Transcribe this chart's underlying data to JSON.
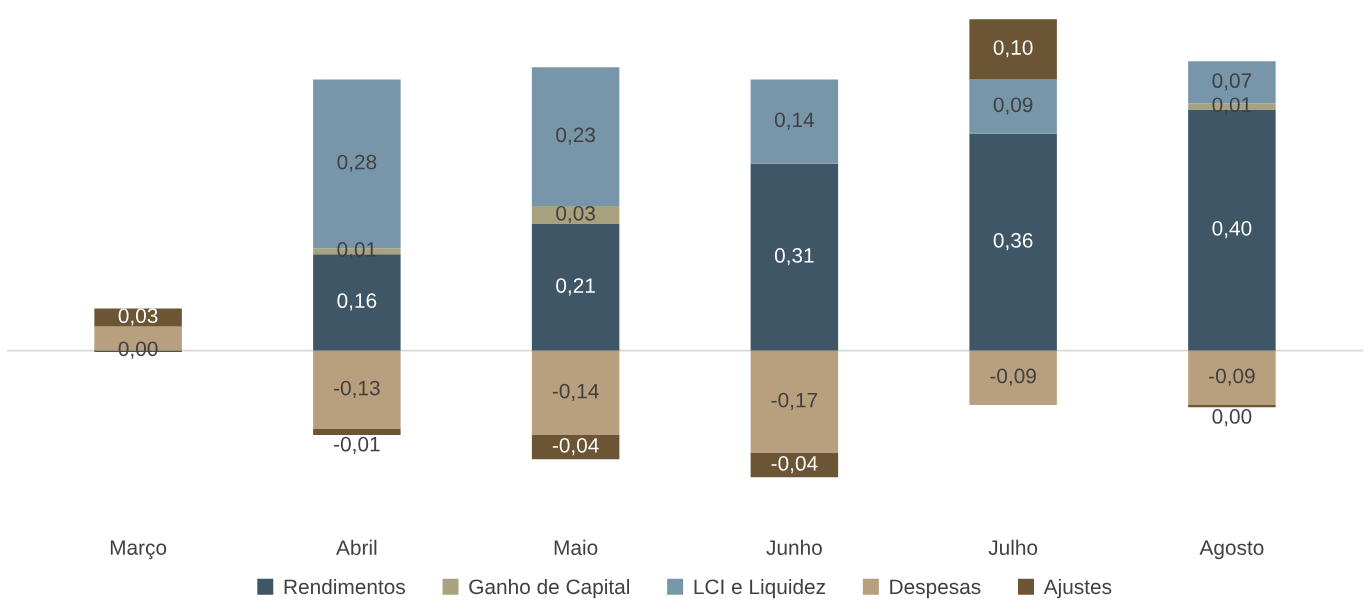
{
  "chart_data": {
    "type": "bar",
    "stacked": true,
    "data_labels": true,
    "legend": "bottom",
    "tick_labels": "x",
    "categories": [
      "Março",
      "Abril",
      "Maio",
      "Junho",
      "Julho",
      "Agosto"
    ],
    "series": [
      {
        "name": "Rendimentos",
        "color": "#3f5666",
        "values": [
          0,
          0.16,
          0.21,
          0.31,
          0.36,
          0.4
        ],
        "value_labels": [
          "0,00",
          "0,16",
          "0,21",
          "0,31",
          "0,36",
          "0,40"
        ]
      },
      {
        "name": "Ganho de Capital",
        "color": "#a8a37e",
        "values": [
          null,
          0.01,
          0.03,
          null,
          null,
          0.01
        ],
        "value_labels": [
          null,
          "0,01",
          "0,03",
          null,
          null,
          "0,01"
        ]
      },
      {
        "name": "LCI e Liquidez",
        "color": "#7896aa",
        "values": [
          null,
          0.28,
          0.23,
          0.14,
          0.09,
          0.07
        ],
        "value_labels": [
          null,
          "0,28",
          "0,23",
          "0,14",
          "0,09",
          "0,07"
        ]
      },
      {
        "name": "Despesas",
        "color": "#b89f7e",
        "values": [
          0.04,
          -0.13,
          -0.14,
          -0.17,
          -0.09,
          -0.09
        ],
        "value_labels": [
          null,
          "-0,13",
          "-0,14",
          "-0,17",
          "-0,09",
          "-0,09"
        ]
      },
      {
        "name": "Ajustes",
        "color": "#6b5535",
        "values": [
          0.03,
          -0.01,
          -0.04,
          -0.04,
          0.1,
          -0.004
        ],
        "value_labels": [
          "0,03",
          "-0,01",
          "-0,04",
          "-0,04",
          "0,10",
          "0,00"
        ]
      }
    ],
    "ref_lines": [
      {
        "axis": "y",
        "value": 0,
        "color": "#d9d9d9"
      }
    ]
  }
}
